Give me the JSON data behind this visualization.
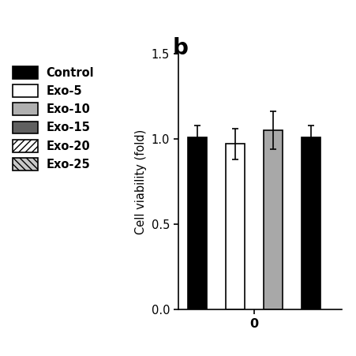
{
  "title_label": "b",
  "ylabel": "Cell viability (fold)",
  "xlabel": "0",
  "ylim": [
    0.0,
    1.5
  ],
  "yticks": [
    0.0,
    0.5,
    1.0,
    1.5
  ],
  "bar_values": [
    1.01,
    0.97,
    1.05,
    1.01
  ],
  "bar_errors": [
    0.07,
    0.09,
    0.11,
    0.07
  ],
  "bar_colors": [
    "#000000",
    "#ffffff",
    "#a8a8a8",
    "#000000"
  ],
  "bar_edgecolors": [
    "#000000",
    "#000000",
    "#000000",
    "#000000"
  ],
  "legend_labels": [
    "Control",
    "Exo-5",
    "Exo-10",
    "Exo-15",
    "Exo-20",
    "Exo-25"
  ],
  "legend_facecolors": [
    "#000000",
    "#ffffff",
    "#b0b0b0",
    "#606060",
    "#ffffff",
    "#c8c8c8"
  ],
  "legend_edgecolors": [
    "#000000",
    "#000000",
    "#000000",
    "#000000",
    "#000000",
    "#000000"
  ],
  "legend_hatches": [
    null,
    null,
    null,
    null,
    "////",
    "\\\\\\\\"
  ],
  "bar_width": 0.5,
  "background_color": "#ffffff",
  "fontsize_ylabel": 10.5,
  "fontsize_ticks": 10.5,
  "fontsize_title": 20,
  "fontsize_legend": 10.5
}
